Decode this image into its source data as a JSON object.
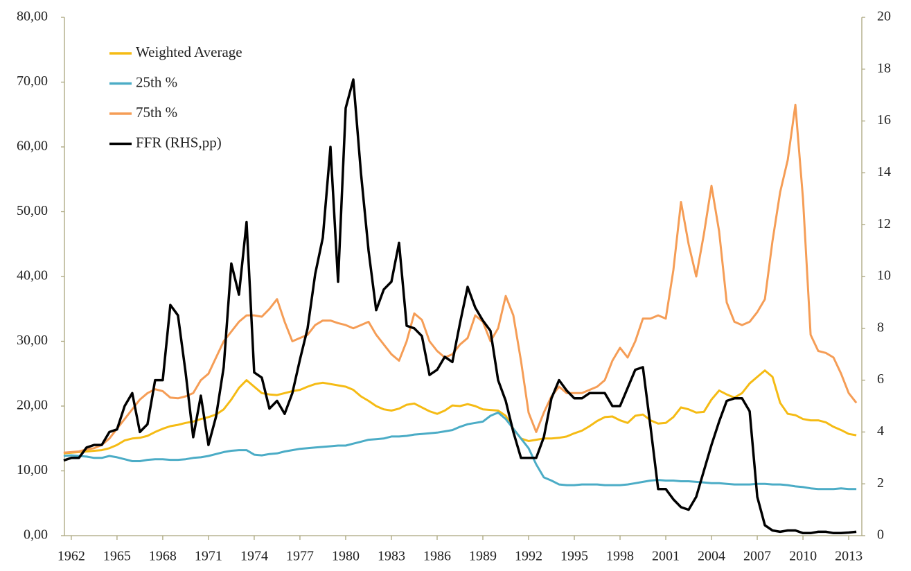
{
  "chart_data": {
    "type": "line",
    "x": [
      1961.5,
      1962,
      1962.5,
      1963,
      1963.5,
      1964,
      1964.5,
      1965,
      1965.5,
      1966,
      1966.5,
      1967,
      1967.5,
      1968,
      1968.5,
      1969,
      1969.5,
      1970,
      1970.5,
      1971,
      1971.5,
      1972,
      1972.5,
      1973,
      1973.5,
      1974,
      1974.5,
      1975,
      1975.5,
      1976,
      1976.5,
      1977,
      1977.5,
      1978,
      1978.5,
      1979,
      1979.5,
      1980,
      1980.5,
      1981,
      1981.5,
      1982,
      1982.5,
      1983,
      1983.5,
      1984,
      1984.5,
      1985,
      1985.5,
      1986,
      1986.5,
      1987,
      1987.5,
      1988,
      1988.5,
      1989,
      1989.5,
      1990,
      1990.5,
      1991,
      1991.5,
      1992,
      1992.5,
      1993,
      1993.5,
      1994,
      1994.5,
      1995,
      1995.5,
      1996,
      1996.5,
      1997,
      1997.5,
      1998,
      1998.5,
      1999,
      1999.5,
      2000,
      2000.5,
      2001,
      2001.5,
      2002,
      2002.5,
      2003,
      2003.5,
      2004,
      2004.5,
      2005,
      2005.5,
      2006,
      2006.5,
      2007,
      2007.5,
      2008,
      2008.5,
      2009,
      2009.5,
      2010,
      2010.5,
      2011,
      2011.5,
      2012,
      2012.5,
      2013,
      2013.5
    ],
    "series": [
      {
        "name": "Weighted Average",
        "color": "#f5bb14",
        "values": [
          12.7,
          12.8,
          12.9,
          13.0,
          13.1,
          13.2,
          13.5,
          14.0,
          14.7,
          15.0,
          15.1,
          15.4,
          16.0,
          16.5,
          16.9,
          17.1,
          17.4,
          17.6,
          18.0,
          18.3,
          18.7,
          19.5,
          21.0,
          22.8,
          24.0,
          23.0,
          22.0,
          21.8,
          21.7,
          22.0,
          22.3,
          22.5,
          23.0,
          23.4,
          23.6,
          23.4,
          23.2,
          23.0,
          22.5,
          21.5,
          20.8,
          20.0,
          19.5,
          19.3,
          19.6,
          20.2,
          20.4,
          19.8,
          19.2,
          18.8,
          19.3,
          20.1,
          20.0,
          20.3,
          20.0,
          19.5,
          19.4,
          19.3,
          18.5,
          16.5,
          15.0,
          14.6,
          14.8,
          15.0,
          15.0,
          15.1,
          15.3,
          15.8,
          16.2,
          16.9,
          17.7,
          18.3,
          18.4,
          17.8,
          17.4,
          18.5,
          18.7,
          17.8,
          17.3,
          17.4,
          18.3,
          19.8,
          19.5,
          19.0,
          19.1,
          21.0,
          22.4,
          21.8,
          21.3,
          22.0,
          23.5,
          24.5,
          25.5,
          24.5,
          20.5,
          18.8,
          18.6,
          18.0,
          17.8,
          17.8,
          17.5,
          16.8,
          16.3,
          15.7,
          15.5
        ]
      },
      {
        "name": "25th %",
        "color": "#4bacc6",
        "values": [
          12.3,
          12.4,
          12.3,
          12.2,
          12.0,
          12.0,
          12.3,
          12.1,
          11.8,
          11.5,
          11.5,
          11.7,
          11.8,
          11.8,
          11.7,
          11.7,
          11.8,
          12.0,
          12.1,
          12.3,
          12.6,
          12.9,
          13.1,
          13.2,
          13.2,
          12.5,
          12.4,
          12.6,
          12.7,
          13.0,
          13.2,
          13.4,
          13.5,
          13.6,
          13.7,
          13.8,
          13.9,
          13.9,
          14.2,
          14.5,
          14.8,
          14.9,
          15.0,
          15.3,
          15.3,
          15.4,
          15.6,
          15.7,
          15.8,
          15.9,
          16.1,
          16.3,
          16.8,
          17.2,
          17.4,
          17.6,
          18.5,
          19.0,
          18.0,
          16.5,
          15.0,
          13.5,
          11.0,
          9.0,
          8.5,
          7.9,
          7.8,
          7.8,
          7.9,
          7.9,
          7.9,
          7.8,
          7.8,
          7.8,
          7.9,
          8.1,
          8.3,
          8.5,
          8.6,
          8.5,
          8.5,
          8.4,
          8.4,
          8.3,
          8.2,
          8.1,
          8.1,
          8.0,
          7.9,
          7.9,
          7.9,
          8.0,
          8.0,
          7.9,
          7.9,
          7.8,
          7.6,
          7.5,
          7.3,
          7.2,
          7.2,
          7.2,
          7.3,
          7.2,
          7.2
        ]
      },
      {
        "name": "75th %",
        "color": "#f59d56",
        "values": [
          12.8,
          12.9,
          13.0,
          13.3,
          13.5,
          14.0,
          15.0,
          16.5,
          18.0,
          19.5,
          21.0,
          22.0,
          22.6,
          22.3,
          21.3,
          21.2,
          21.5,
          22.0,
          24.0,
          25.0,
          27.5,
          30.0,
          31.5,
          33.0,
          34.0,
          34.0,
          33.8,
          35.0,
          36.5,
          33.0,
          30.0,
          30.5,
          31.0,
          32.5,
          33.2,
          33.2,
          32.8,
          32.5,
          32.0,
          32.5,
          33.0,
          31.0,
          29.5,
          28.0,
          27.0,
          30.0,
          34.3,
          33.3,
          30.0,
          28.5,
          27.5,
          28.0,
          29.5,
          30.5,
          34.0,
          33.0,
          30.0,
          32.0,
          37.0,
          34.0,
          27.0,
          19.0,
          16.0,
          19.0,
          21.5,
          23.0,
          22.0,
          22.0,
          22.0,
          22.5,
          23.0,
          24.0,
          27.0,
          29.0,
          27.5,
          30.0,
          33.5,
          33.5,
          34.0,
          33.5,
          41.0,
          51.5,
          45.0,
          40.0,
          46.5,
          54.0,
          47.0,
          36.0,
          33.0,
          32.5,
          33.0,
          34.5,
          36.5,
          45.5,
          53.0,
          58.0,
          66.5,
          52.0,
          31.0,
          28.5,
          28.2,
          27.5,
          25.0,
          22.0,
          20.5
        ]
      },
      {
        "name": "FFR (RHS,pp)",
        "color": "#000000",
        "axis": "y2",
        "values": [
          2.9,
          3.0,
          3.0,
          3.4,
          3.5,
          3.5,
          4.0,
          4.1,
          5.0,
          5.5,
          4.0,
          4.3,
          6.0,
          6.0,
          8.9,
          8.5,
          6.3,
          3.8,
          5.4,
          3.5,
          4.6,
          6.5,
          10.5,
          9.3,
          12.1,
          6.3,
          6.1,
          4.9,
          5.2,
          4.7,
          5.5,
          6.8,
          8.0,
          10.1,
          11.5,
          15.0,
          9.8,
          16.5,
          17.6,
          14.0,
          11.0,
          8.7,
          9.5,
          9.8,
          11.3,
          8.1,
          8.0,
          7.7,
          6.2,
          6.4,
          6.9,
          6.7,
          8.2,
          9.6,
          8.8,
          8.3,
          7.9,
          6.0,
          5.2,
          4.0,
          3.0,
          3.0,
          3.0,
          3.8,
          5.3,
          6.0,
          5.6,
          5.3,
          5.3,
          5.5,
          5.5,
          5.5,
          5.0,
          5.0,
          5.7,
          6.4,
          6.5,
          4.2,
          1.8,
          1.8,
          1.4,
          1.1,
          1.0,
          1.5,
          2.5,
          3.5,
          4.4,
          5.2,
          5.3,
          5.3,
          4.8,
          1.5,
          0.4,
          0.2,
          0.15,
          0.2,
          0.2,
          0.1,
          0.1,
          0.15,
          0.15,
          0.1,
          0.1,
          0.12,
          0.15
        ]
      }
    ],
    "xlim": [
      1961.55,
      2013.86
    ],
    "xticks": [
      1962,
      1965,
      1968,
      1971,
      1974,
      1977,
      1980,
      1983,
      1986,
      1989,
      1992,
      1995,
      1998,
      2001,
      2004,
      2007,
      2010,
      2013
    ],
    "ylim": [
      0,
      80
    ],
    "yticks": [
      {
        "value": 0,
        "label": "0,00"
      },
      {
        "value": 10,
        "label": "10,00"
      },
      {
        "value": 20,
        "label": "20,00"
      },
      {
        "value": 30,
        "label": "30,00"
      },
      {
        "value": 40,
        "label": "40,00"
      },
      {
        "value": 50,
        "label": "50,00"
      },
      {
        "value": 60,
        "label": "60,00"
      },
      {
        "value": 70,
        "label": "70,00"
      },
      {
        "value": 80,
        "label": "80,00"
      }
    ],
    "y2lim": [
      0,
      20
    ],
    "y2ticks": [
      0,
      2,
      4,
      6,
      8,
      10,
      12,
      14,
      16,
      18,
      20
    ],
    "legend": "upper left"
  }
}
